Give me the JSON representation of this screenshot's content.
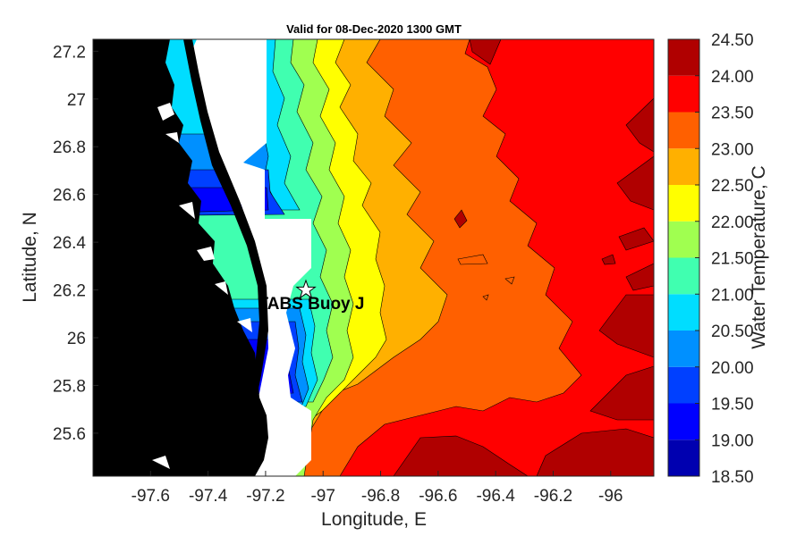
{
  "title": "Valid for 08-Dec-2020 1300 GMT",
  "xlabel": "Longitude, E",
  "ylabel": "Latitude, N",
  "colorbar_label": "Water Temperature, C",
  "buoy": {
    "label": "TABS Buoy J",
    "lon": -97.05,
    "lat": 26.19,
    "marker": "star-icon"
  },
  "map": {
    "xlim": [
      -97.8,
      -95.85
    ],
    "ylim": [
      25.42,
      27.25
    ],
    "xticks": [
      {
        "value": -97.6,
        "label": "-97.6"
      },
      {
        "value": -97.4,
        "label": "-97.4"
      },
      {
        "value": -97.2,
        "label": "-97.2"
      },
      {
        "value": -97.0,
        "label": "-97"
      },
      {
        "value": -96.8,
        "label": "-96.8"
      },
      {
        "value": -96.6,
        "label": "-96.6"
      },
      {
        "value": -96.4,
        "label": "-96.4"
      },
      {
        "value": -96.2,
        "label": "-96.2"
      },
      {
        "value": -96.0,
        "label": "-96"
      }
    ],
    "yticks": [
      {
        "value": 25.6,
        "label": "25.6"
      },
      {
        "value": 25.8,
        "label": "25.8"
      },
      {
        "value": 26.0,
        "label": "26"
      },
      {
        "value": 26.2,
        "label": "26.2"
      },
      {
        "value": 26.4,
        "label": "26.4"
      },
      {
        "value": 26.6,
        "label": "26.6"
      },
      {
        "value": 26.8,
        "label": "26.8"
      },
      {
        "value": 27.0,
        "label": "27"
      },
      {
        "value": 27.2,
        "label": "27.2"
      }
    ],
    "land_color": "#000000",
    "nodata_color": "#ffffff"
  },
  "colorbar": {
    "levels": [
      "18.50",
      "19.00",
      "19.50",
      "20.00",
      "20.50",
      "21.00",
      "21.50",
      "22.00",
      "22.50",
      "23.00",
      "23.50",
      "24.00",
      "24.50"
    ],
    "colors": [
      "#0000b0",
      "#0000ff",
      "#0040ff",
      "#0090ff",
      "#00ddff",
      "#40ffb0",
      "#a0ff50",
      "#ffff00",
      "#ffb000",
      "#ff6000",
      "#ff0000",
      "#b00000"
    ]
  }
}
